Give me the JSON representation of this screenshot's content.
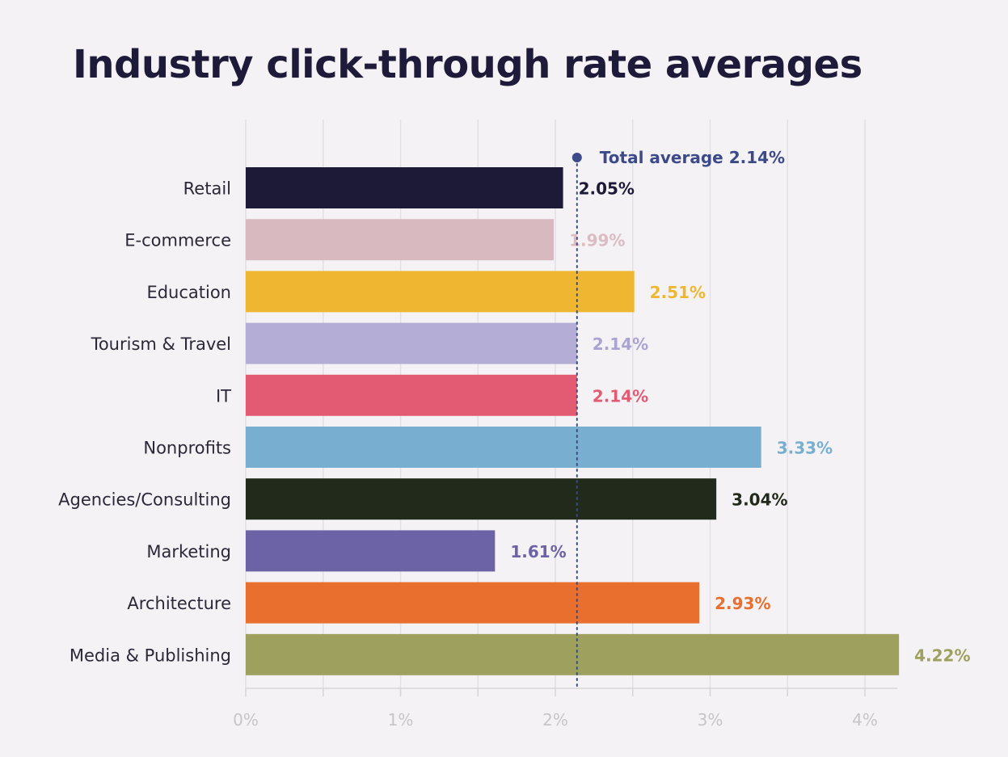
{
  "chart_data": {
    "type": "bar",
    "orientation": "horizontal",
    "title": "Industry click-through rate averages",
    "xlabel": "",
    "ylabel": "",
    "unit": "%",
    "xlim": [
      0,
      4.4
    ],
    "grid": true,
    "ticks": [
      {
        "value": 0,
        "label": "0%"
      },
      {
        "value": 0.5,
        "label": ""
      },
      {
        "value": 1,
        "label": "1%"
      },
      {
        "value": 1.5,
        "label": ""
      },
      {
        "value": 2,
        "label": "2%"
      },
      {
        "value": 2.5,
        "label": ""
      },
      {
        "value": 3,
        "label": "3%"
      },
      {
        "value": 3.5,
        "label": ""
      },
      {
        "value": 4,
        "label": "4%"
      }
    ],
    "reference_line": {
      "value": 2.14,
      "label": "Total average 2.14%",
      "color": "#3d4a8a"
    },
    "categories": [
      "Retail",
      "E-commerce",
      "Education",
      "Tourism & Travel",
      "IT",
      "Nonprofits",
      "Agencies/Consulting",
      "Marketing",
      "Architecture",
      "Media & Publishing"
    ],
    "values": [
      2.05,
      1.99,
      2.51,
      2.14,
      2.14,
      3.33,
      3.04,
      1.61,
      2.93,
      4.22
    ],
    "value_labels": [
      "2.05%",
      "1.99%",
      "2.51%",
      "2.14%",
      "2.14%",
      "3.33%",
      "3.04%",
      "1.61%",
      "2.93%",
      "4.22%"
    ],
    "colors": [
      "#1d1a38",
      "#d8b9c0",
      "#efb731",
      "#b4aed6",
      "#e35b73",
      "#78afd0",
      "#212a1b",
      "#6c62a6",
      "#e86f2e",
      "#9ea15e"
    ],
    "label_colors": [
      "#1d1a38",
      "#dcbcc3",
      "#efb731",
      "#aaa4d2",
      "#e35b73",
      "#78afd0",
      "#212a1b",
      "#6c62a6",
      "#e86f2e",
      "#9ea15e"
    ]
  }
}
